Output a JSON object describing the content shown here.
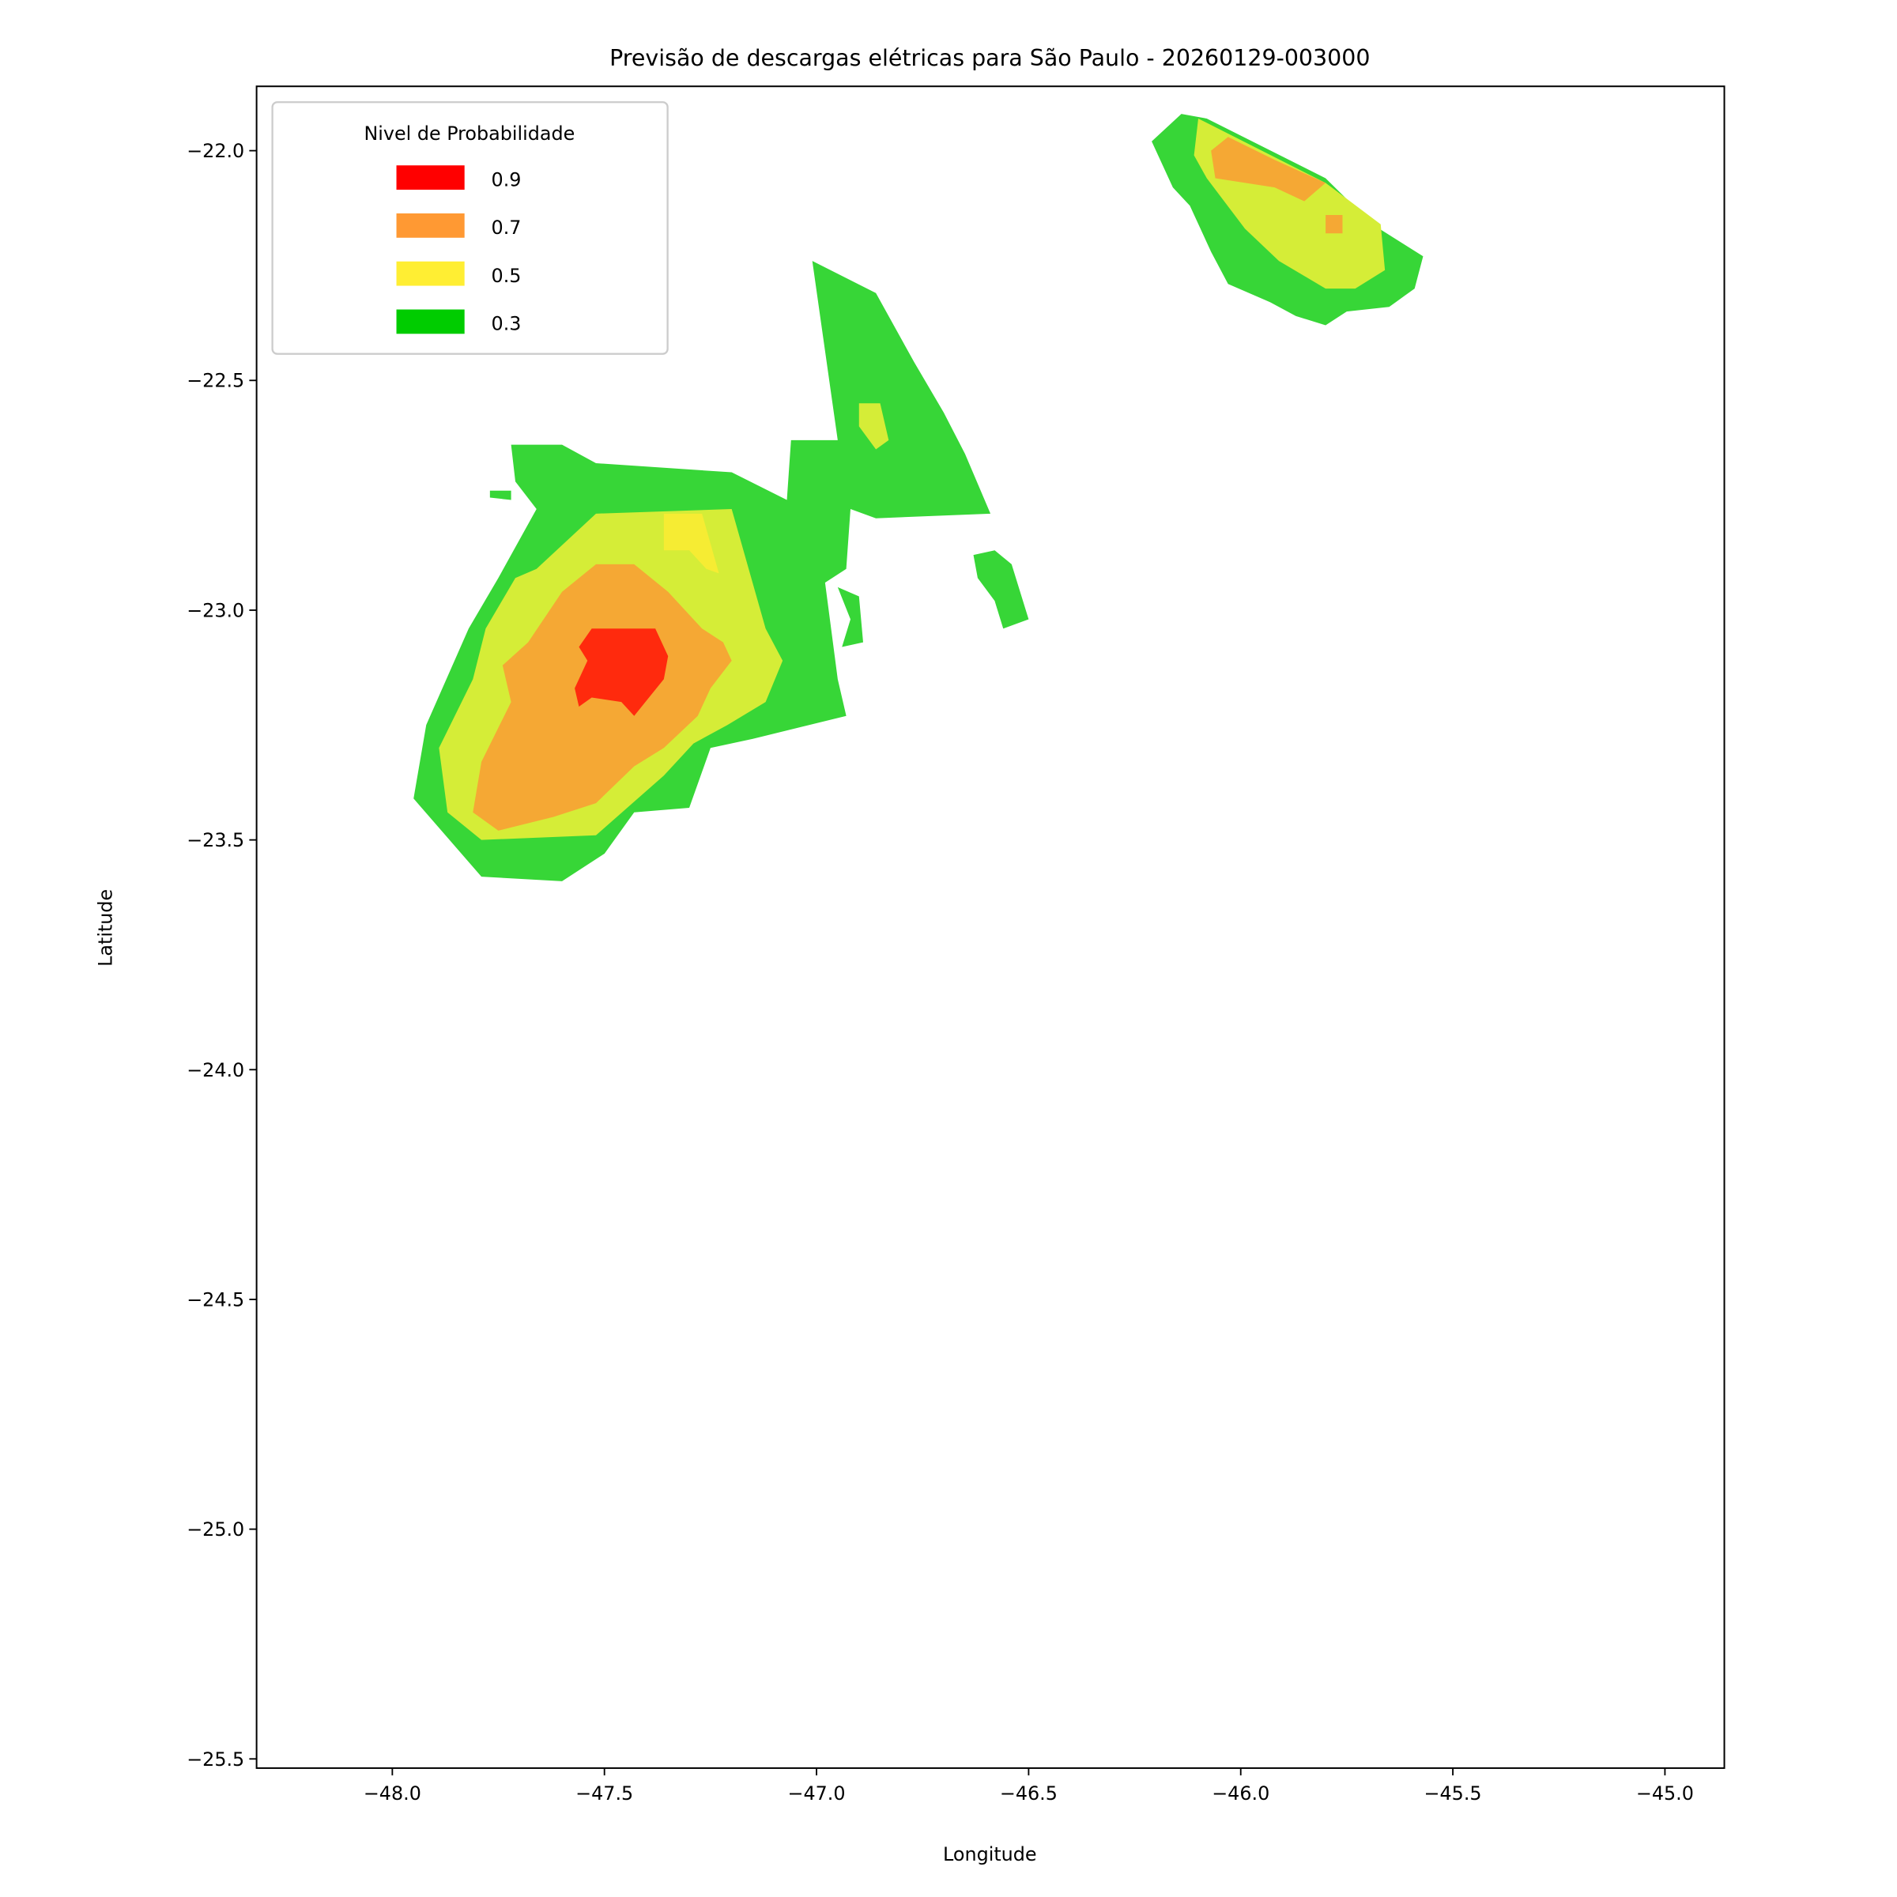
{
  "chart_data": {
    "type": "contourf",
    "title": "Previsão de descargas elétricas para São Paulo - 20260129-003000",
    "xlabel": "Longitude",
    "ylabel": "Latitude",
    "xlim": [
      -48.32,
      -44.86
    ],
    "ylim": [
      -25.52,
      -21.86
    ],
    "xticks": [
      -48.0,
      -47.5,
      -47.0,
      -46.5,
      -46.0,
      -45.5,
      -45.0
    ],
    "xtick_labels": [
      "−48.0",
      "−47.5",
      "−47.0",
      "−46.5",
      "−46.0",
      "−45.5",
      "−45.0"
    ],
    "yticks": [
      -22.0,
      -22.5,
      -23.0,
      -23.5,
      -24.0,
      -24.5,
      -25.0,
      -25.5
    ],
    "ytick_labels": [
      "−22.0",
      "−22.5",
      "−23.0",
      "−23.5",
      "−24.0",
      "−24.5",
      "−25.0",
      "−25.5"
    ],
    "grid": false,
    "legend": {
      "title": "Nivel de Probabilidade",
      "placement": "top-left",
      "entries": [
        {
          "label": "0.9",
          "color": "#ff0000"
        },
        {
          "label": "0.7",
          "color": "#ff9933"
        },
        {
          "label": "0.5",
          "color": "#ffee33"
        },
        {
          "label": "0.3",
          "color": "#00cc00"
        }
      ]
    },
    "fill_colors": {
      "0.3": "#37d637",
      "0.5": "#d5ed37",
      "0.5_peak": "#f6ec33",
      "0.7": "#f5a834",
      "0.9": "#ff2a0d"
    },
    "regions": [
      {
        "level": "0.3",
        "points": [
          [
            -47.72,
            -22.64
          ],
          [
            -47.6,
            -22.64
          ],
          [
            -47.52,
            -22.68
          ],
          [
            -47.2,
            -22.7
          ],
          [
            -47.07,
            -22.76
          ],
          [
            -47.06,
            -22.63
          ],
          [
            -46.95,
            -22.63
          ],
          [
            -47.01,
            -22.24
          ],
          [
            -46.86,
            -22.31
          ],
          [
            -46.77,
            -22.46
          ],
          [
            -46.7,
            -22.57
          ],
          [
            -46.65,
            -22.66
          ],
          [
            -46.59,
            -22.79
          ],
          [
            -46.86,
            -22.8
          ],
          [
            -46.92,
            -22.78
          ],
          [
            -46.93,
            -22.91
          ],
          [
            -46.98,
            -22.94
          ],
          [
            -46.95,
            -23.15
          ],
          [
            -46.93,
            -23.23
          ],
          [
            -47.15,
            -23.28
          ],
          [
            -47.25,
            -23.3
          ],
          [
            -47.3,
            -23.43
          ],
          [
            -47.43,
            -23.44
          ],
          [
            -47.5,
            -23.53
          ],
          [
            -47.6,
            -23.59
          ],
          [
            -47.79,
            -23.58
          ],
          [
            -47.95,
            -23.41
          ],
          [
            -47.92,
            -23.25
          ],
          [
            -47.82,
            -23.04
          ],
          [
            -47.75,
            -22.93
          ],
          [
            -47.66,
            -22.78
          ],
          [
            -47.71,
            -22.72
          ]
        ]
      },
      {
        "level": "0.3",
        "points": [
          [
            -46.63,
            -22.88
          ],
          [
            -46.58,
            -22.87
          ],
          [
            -46.54,
            -22.9
          ],
          [
            -46.5,
            -23.02
          ],
          [
            -46.56,
            -23.04
          ],
          [
            -46.58,
            -22.98
          ],
          [
            -46.62,
            -22.93
          ]
        ]
      },
      {
        "level": "0.3",
        "points": [
          [
            -46.95,
            -22.95
          ],
          [
            -46.9,
            -22.97
          ],
          [
            -46.89,
            -23.07
          ],
          [
            -46.94,
            -23.08
          ],
          [
            -46.92,
            -23.02
          ]
        ]
      },
      {
        "level": "0.3",
        "points": [
          [
            -47.77,
            -22.74
          ],
          [
            -47.72,
            -22.74
          ],
          [
            -47.72,
            -22.76
          ],
          [
            -47.77,
            -22.755
          ]
        ]
      },
      {
        "level": "0.3",
        "points": [
          [
            -46.14,
            -21.92
          ],
          [
            -46.08,
            -21.93
          ],
          [
            -45.8,
            -22.06
          ],
          [
            -45.69,
            -22.16
          ],
          [
            -45.57,
            -22.23
          ],
          [
            -45.59,
            -22.3
          ],
          [
            -45.65,
            -22.34
          ],
          [
            -45.75,
            -22.35
          ],
          [
            -45.8,
            -22.38
          ],
          [
            -45.87,
            -22.36
          ],
          [
            -45.93,
            -22.33
          ],
          [
            -46.03,
            -22.29
          ],
          [
            -46.07,
            -22.22
          ],
          [
            -46.12,
            -22.12
          ],
          [
            -46.16,
            -22.08
          ],
          [
            -46.21,
            -21.98
          ]
        ]
      },
      {
        "level": "0.5",
        "points": [
          [
            -47.66,
            -22.91
          ],
          [
            -47.52,
            -22.79
          ],
          [
            -47.2,
            -22.78
          ],
          [
            -47.12,
            -23.04
          ],
          [
            -47.08,
            -23.11
          ],
          [
            -47.12,
            -23.2
          ],
          [
            -47.21,
            -23.25
          ],
          [
            -47.29,
            -23.29
          ],
          [
            -47.36,
            -23.36
          ],
          [
            -47.52,
            -23.49
          ],
          [
            -47.79,
            -23.5
          ],
          [
            -47.87,
            -23.44
          ],
          [
            -47.89,
            -23.3
          ],
          [
            -47.81,
            -23.15
          ],
          [
            -47.78,
            -23.04
          ],
          [
            -47.71,
            -22.93
          ]
        ]
      },
      {
        "level": "0.5",
        "points": [
          [
            -46.9,
            -22.55
          ],
          [
            -46.85,
            -22.55
          ],
          [
            -46.83,
            -22.63
          ],
          [
            -46.86,
            -22.65
          ],
          [
            -46.9,
            -22.6
          ]
        ]
      },
      {
        "level": "0.5",
        "points": [
          [
            -46.1,
            -21.93
          ],
          [
            -45.8,
            -22.07
          ],
          [
            -45.67,
            -22.16
          ],
          [
            -45.66,
            -22.26
          ],
          [
            -45.73,
            -22.3
          ],
          [
            -45.8,
            -22.3
          ],
          [
            -45.91,
            -22.24
          ],
          [
            -45.99,
            -22.17
          ],
          [
            -46.08,
            -22.06
          ],
          [
            -46.11,
            -22.01
          ]
        ]
      },
      {
        "level": "0.5_peak",
        "points": [
          [
            -47.36,
            -22.79
          ],
          [
            -47.27,
            -22.79
          ],
          [
            -47.23,
            -22.92
          ],
          [
            -47.26,
            -22.91
          ],
          [
            -47.3,
            -22.87
          ],
          [
            -47.36,
            -22.87
          ]
        ]
      },
      {
        "level": "0.7",
        "points": [
          [
            -47.6,
            -22.96
          ],
          [
            -47.52,
            -22.9
          ],
          [
            -47.43,
            -22.9
          ],
          [
            -47.35,
            -22.96
          ],
          [
            -47.27,
            -23.04
          ],
          [
            -47.22,
            -23.07
          ],
          [
            -47.2,
            -23.11
          ],
          [
            -47.25,
            -23.17
          ],
          [
            -47.28,
            -23.23
          ],
          [
            -47.36,
            -23.3
          ],
          [
            -47.43,
            -23.34
          ],
          [
            -47.52,
            -23.42
          ],
          [
            -47.62,
            -23.45
          ],
          [
            -47.75,
            -23.48
          ],
          [
            -47.81,
            -23.44
          ],
          [
            -47.79,
            -23.33
          ],
          [
            -47.72,
            -23.2
          ],
          [
            -47.74,
            -23.12
          ],
          [
            -47.68,
            -23.07
          ]
        ]
      },
      {
        "level": "0.7",
        "points": [
          [
            -46.07,
            -22.0
          ],
          [
            -46.03,
            -21.97
          ],
          [
            -45.92,
            -22.02
          ],
          [
            -45.8,
            -22.07
          ],
          [
            -45.85,
            -22.11
          ],
          [
            -45.92,
            -22.08
          ],
          [
            -46.06,
            -22.06
          ]
        ]
      },
      {
        "level": "0.7",
        "points": [
          [
            -45.8,
            -22.14
          ],
          [
            -45.76,
            -22.14
          ],
          [
            -45.76,
            -22.18
          ],
          [
            -45.8,
            -22.18
          ]
        ]
      },
      {
        "level": "0.9",
        "points": [
          [
            -47.53,
            -23.04
          ],
          [
            -47.38,
            -23.04
          ],
          [
            -47.35,
            -23.1
          ],
          [
            -47.36,
            -23.15
          ],
          [
            -47.43,
            -23.23
          ],
          [
            -47.46,
            -23.2
          ],
          [
            -47.53,
            -23.19
          ],
          [
            -47.56,
            -23.21
          ],
          [
            -47.57,
            -23.17
          ],
          [
            -47.54,
            -23.11
          ],
          [
            -47.56,
            -23.08
          ]
        ]
      }
    ]
  }
}
